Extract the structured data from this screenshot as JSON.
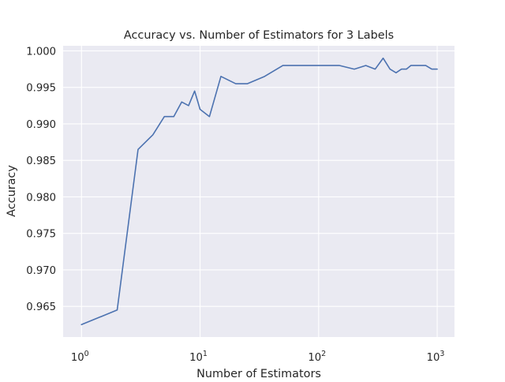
{
  "chart_data": {
    "type": "line",
    "title": "Accuracy vs. Number of Estimators for 3 Labels",
    "xlabel": "Number of Estimators",
    "ylabel": "Accuracy",
    "xscale": "log",
    "xlim": [
      0.7,
      1400
    ],
    "ylim": [
      0.9608,
      1.0007
    ],
    "grid": true,
    "legend": "none",
    "colors": {
      "background": "#EAEAF2",
      "grid": "#FFFFFF",
      "line": "#4C72B0",
      "text": "#262626"
    },
    "x_ticks": [
      {
        "value": 1,
        "base": "10",
        "exp": "0"
      },
      {
        "value": 10,
        "base": "10",
        "exp": "1"
      },
      {
        "value": 100,
        "base": "10",
        "exp": "2"
      },
      {
        "value": 1000,
        "base": "10",
        "exp": "3"
      }
    ],
    "y_ticks": [
      {
        "value": 0.965,
        "label": "0.965"
      },
      {
        "value": 0.97,
        "label": "0.970"
      },
      {
        "value": 0.975,
        "label": "0.975"
      },
      {
        "value": 0.98,
        "label": "0.980"
      },
      {
        "value": 0.985,
        "label": "0.985"
      },
      {
        "value": 0.99,
        "label": "0.990"
      },
      {
        "value": 0.995,
        "label": "0.995"
      },
      {
        "value": 1.0,
        "label": "1.000"
      }
    ],
    "series": [
      {
        "x": [
          1,
          2,
          3,
          4,
          5,
          6,
          7,
          8,
          9,
          10,
          12,
          15,
          20,
          25,
          35,
          50,
          75,
          100,
          150,
          200,
          250,
          300,
          350,
          400,
          450,
          500,
          550,
          600,
          700,
          800,
          900,
          1000
        ],
        "y": [
          0.9625,
          0.9645,
          0.9865,
          0.9885,
          0.991,
          0.991,
          0.993,
          0.9925,
          0.9945,
          0.992,
          0.991,
          0.9965,
          0.9955,
          0.9955,
          0.9965,
          0.998,
          0.998,
          0.998,
          0.998,
          0.9975,
          0.998,
          0.9975,
          0.999,
          0.9975,
          0.997,
          0.9975,
          0.9975,
          0.998,
          0.998,
          0.998,
          0.9975,
          0.9975
        ]
      }
    ]
  }
}
